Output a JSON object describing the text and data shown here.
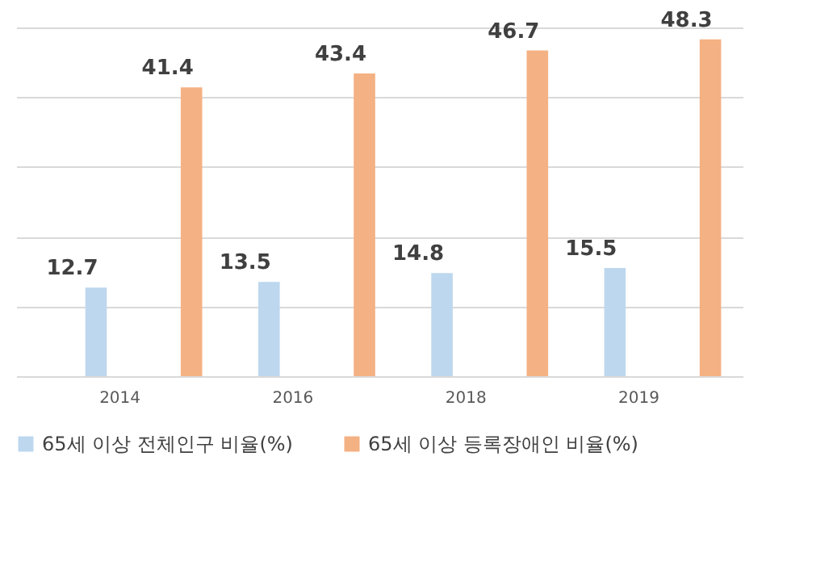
{
  "chart_data": {
    "type": "bar",
    "categories": [
      "2014",
      "2016",
      "2018",
      "2019"
    ],
    "series": [
      {
        "name": "65세 이상 전체인구 비율(%)",
        "color": "#bdd7ee",
        "values": [
          12.7,
          13.5,
          14.8,
          15.5
        ]
      },
      {
        "name": "65세 이상 등록장애인 비율(%)",
        "color": "#f4b183",
        "values": [
          41.4,
          43.4,
          46.7,
          48.3
        ]
      }
    ],
    "ylim": [
      0,
      50
    ],
    "yticks": [
      {
        "value": 0,
        "label": null
      },
      {
        "value": 10,
        "label": null
      },
      {
        "value": 20,
        "label": null
      },
      {
        "value": 30,
        "label": null
      },
      {
        "value": 40,
        "label": null
      },
      {
        "value": 50,
        "label": null
      }
    ],
    "grid": "y",
    "tick_labels": "x",
    "legend": "bottom",
    "data_labels": true
  }
}
